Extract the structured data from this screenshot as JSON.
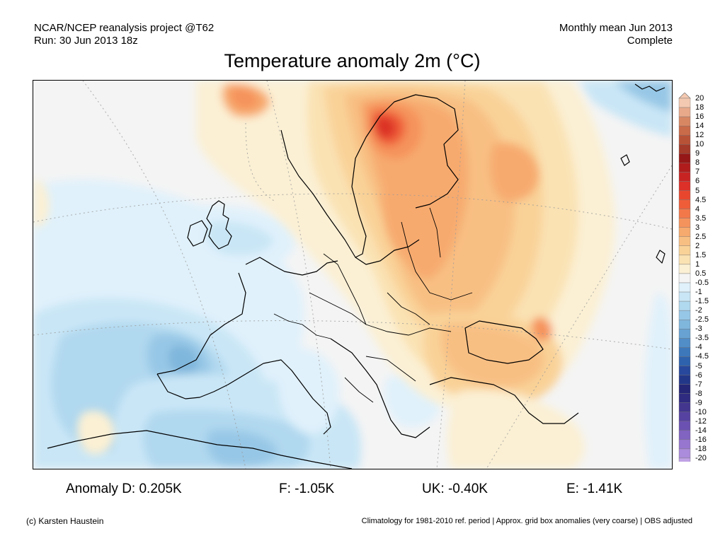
{
  "header": {
    "source_line": "NCAR/NCEP reanalysis project @T62",
    "run_line": "Run: 30 Jun 2013 18z",
    "period_line": "Monthly mean Jun 2013",
    "status_line": "Complete"
  },
  "title": "Temperature anomaly 2m (°C)",
  "colorbar": {
    "labels": [
      "20",
      "18",
      "16",
      "14",
      "12",
      "10",
      "9",
      "8",
      "7",
      "6",
      "5",
      "4.5",
      "4",
      "3.5",
      "3",
      "2.5",
      "2",
      "1.5",
      "1",
      "0.5",
      "-0.5",
      "-1",
      "-1.5",
      "-2",
      "-2.5",
      "-3",
      "-3.5",
      "-4",
      "-4.5",
      "-5",
      "-6",
      "-7",
      "-8",
      "-9",
      "-10",
      "-12",
      "-14",
      "-16",
      "-18",
      "-20"
    ],
    "colors": [
      "#f4c9b1",
      "#e8a98a",
      "#d88763",
      "#c96a48",
      "#b85237",
      "#a43a29",
      "#961717",
      "#b01c1c",
      "#c82323",
      "#dc3028",
      "#e8472e",
      "#ef5d38",
      "#f2784a",
      "#f5935c",
      "#f7aa6e",
      "#f8bf83",
      "#f9d298",
      "#fae2b3",
      "#fbf0d4",
      "#f4f4f4",
      "#e0f1fb",
      "#c9e6f6",
      "#b0d8ef",
      "#97c7e6",
      "#7fb6dc",
      "#67a2d2",
      "#518dc7",
      "#3d78bb",
      "#2e62ad",
      "#27489c",
      "#233789",
      "#252676",
      "#2f2b80",
      "#42368f",
      "#5642a0",
      "#6b51b1",
      "#8163c1",
      "#9676cf",
      "#ab8bdb",
      "#c0a2e6"
    ]
  },
  "stats": {
    "germany": "Anomaly D: 0.205K",
    "france": "F: -1.05K",
    "uk": "UK: -0.40K",
    "spain": "E: -1.41K"
  },
  "footer": {
    "credit": "(c) Karsten Haustein",
    "note": "Climatology for 1981-2010 ref. period | Approx. grid box anomalies (very coarse) | OBS adjusted"
  }
}
